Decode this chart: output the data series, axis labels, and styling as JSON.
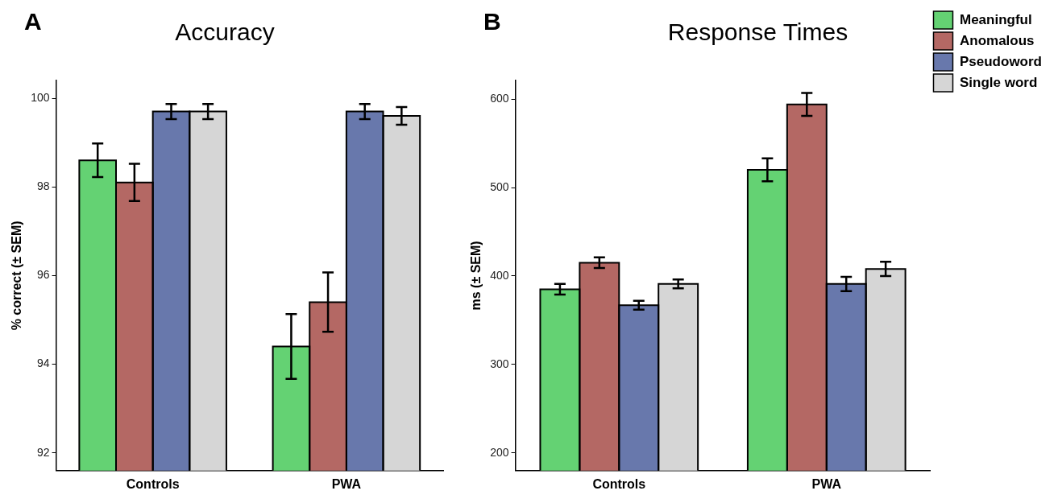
{
  "chart_data": [
    {
      "type": "bar",
      "title": "Accuracy",
      "ylabel": "% correct (± SEM)",
      "annotations": [
        "A"
      ],
      "categories": [
        "Controls",
        "PWA"
      ],
      "ylim": [
        91.6,
        100.4
      ],
      "yticks": [
        92,
        94,
        96,
        98,
        100
      ],
      "grid": false,
      "legend": false,
      "series": [
        {
          "color": "#64d273",
          "values": [
            98.6,
            94.4
          ],
          "errors": [
            0.38,
            0.73
          ]
        },
        {
          "color": "#b46864",
          "values": [
            98.1,
            95.4
          ],
          "errors": [
            0.42,
            0.67
          ]
        },
        {
          "color": "#6878ac",
          "values": [
            99.7,
            99.7
          ],
          "errors": [
            0.17,
            0.17
          ]
        },
        {
          "color": "#d6d6d6",
          "values": [
            99.7,
            99.6
          ],
          "errors": [
            0.17,
            0.2
          ]
        }
      ]
    },
    {
      "type": "bar",
      "title": "Response Times",
      "ylabel": "ms (± SEM)",
      "annotations": [
        "B"
      ],
      "categories": [
        "Controls",
        "PWA"
      ],
      "ylim": [
        180,
        621
      ],
      "yticks": [
        200,
        300,
        400,
        500,
        600
      ],
      "grid": false,
      "legend": "right",
      "series": [
        {
          "name": "Meaningful",
          "color": "#64d273",
          "values": [
            385,
            520
          ],
          "errors": [
            6,
            13
          ]
        },
        {
          "name": "Anomalous",
          "color": "#b46864",
          "values": [
            415,
            594
          ],
          "errors": [
            6,
            13
          ]
        },
        {
          "name": "Pseudoword",
          "color": "#6878ac",
          "values": [
            367,
            391
          ],
          "errors": [
            5,
            8
          ]
        },
        {
          "name": "Single word",
          "color": "#d6d6d6",
          "values": [
            391,
            408
          ],
          "errors": [
            5,
            8
          ]
        }
      ]
    }
  ]
}
